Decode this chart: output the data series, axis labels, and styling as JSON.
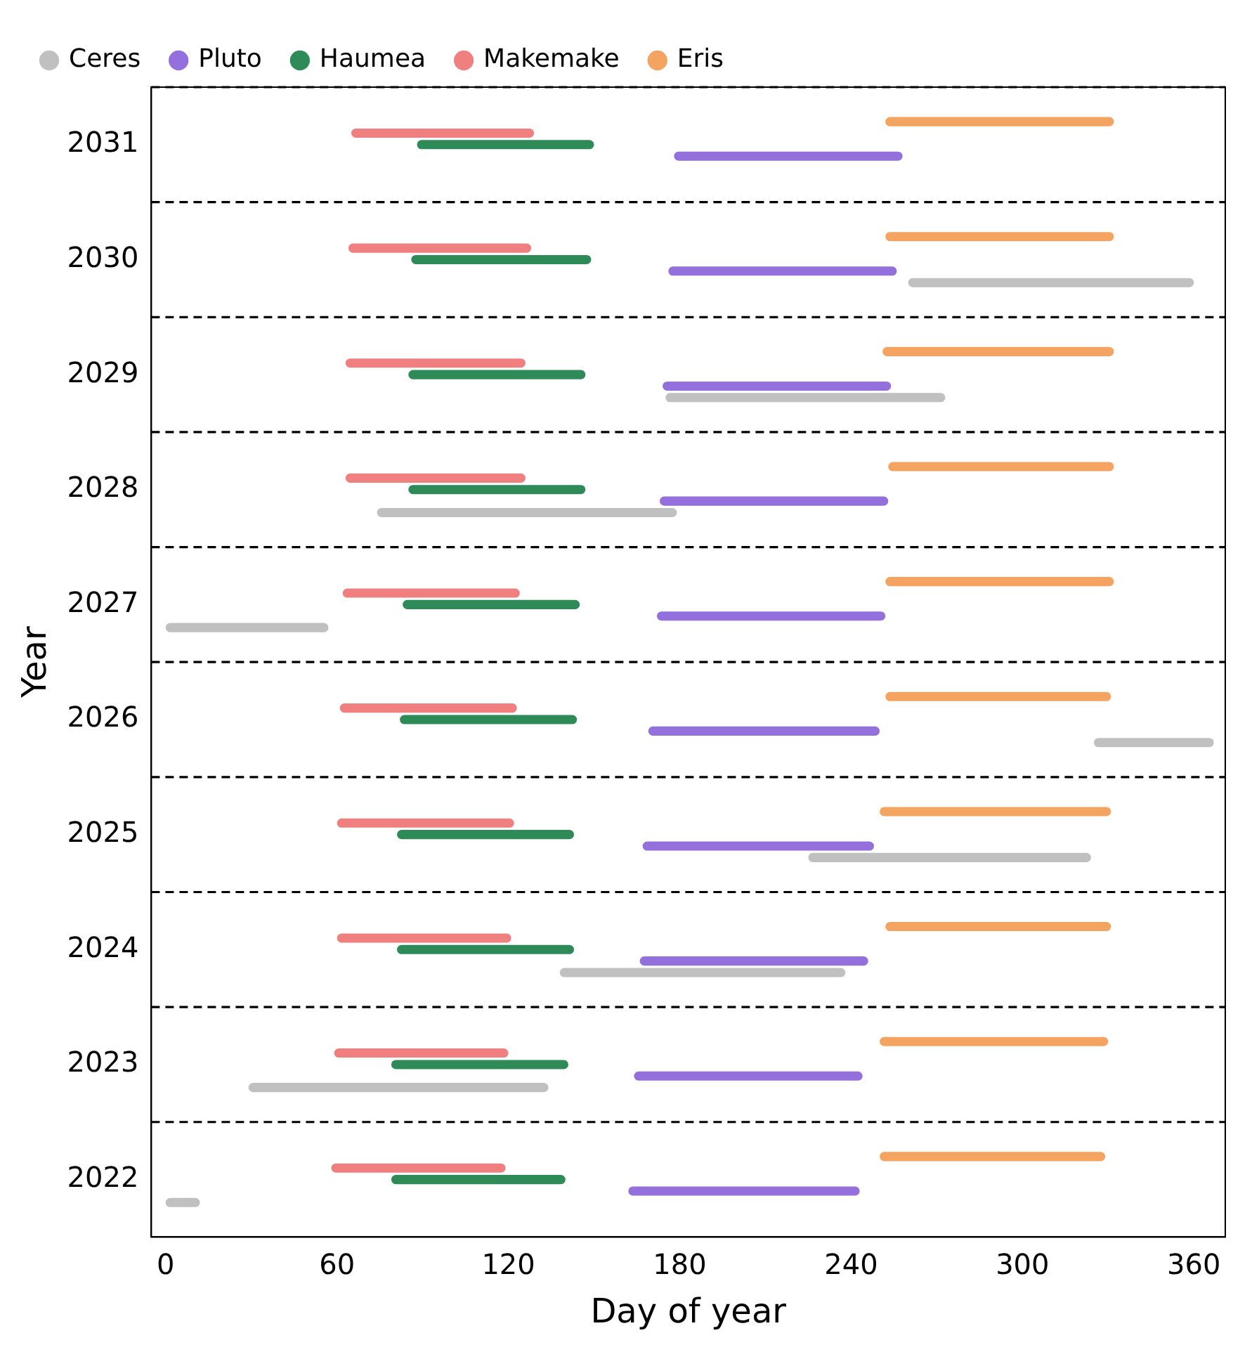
{
  "chart_data": {
    "type": "bar",
    "orientation": "horizontal",
    "xlabel": "Day of year",
    "ylabel": "Year",
    "categories": [
      "2031",
      "2030",
      "2029",
      "2028",
      "2027",
      "2026",
      "2025",
      "2024",
      "2023",
      "2022"
    ],
    "series": [
      {
        "name": "Ceres",
        "color": "#c0c0c0",
        "base": [
          null,
          260,
          175,
          74,
          0,
          325,
          225,
          138,
          29,
          0
        ],
        "values": [
          null,
          100,
          98,
          105,
          57,
          42,
          99,
          100,
          105,
          12
        ]
      },
      {
        "name": "Pluto",
        "color": "#9370db",
        "base": [
          178,
          176,
          174,
          173,
          172,
          169,
          167,
          166,
          164,
          162
        ],
        "values": [
          80,
          80,
          80,
          80,
          80,
          81,
          81,
          80,
          80,
          81
        ]
      },
      {
        "name": "Haumea",
        "color": "#2e8b57",
        "base": [
          88,
          86,
          85,
          85,
          83,
          82,
          81,
          81,
          79,
          79
        ],
        "values": [
          62,
          63,
          62,
          62,
          62,
          62,
          62,
          62,
          62,
          61
        ]
      },
      {
        "name": "Makemake",
        "color": "#f08080",
        "base": [
          65,
          64,
          63,
          63,
          62,
          61,
          60,
          60,
          59,
          58
        ],
        "values": [
          64,
          64,
          63,
          63,
          62,
          62,
          62,
          61,
          61,
          61
        ]
      },
      {
        "name": "Eris",
        "color": "#f4a460",
        "base": [
          252,
          252,
          251,
          253,
          252,
          252,
          250,
          252,
          250,
          250
        ],
        "values": [
          80,
          80,
          81,
          79,
          80,
          79,
          81,
          79,
          80,
          79
        ]
      }
    ],
    "xlim": [
      -5,
      371
    ],
    "xticks": [
      0,
      60,
      120,
      180,
      240,
      300,
      360
    ],
    "grid": "y",
    "legend": "top left"
  }
}
